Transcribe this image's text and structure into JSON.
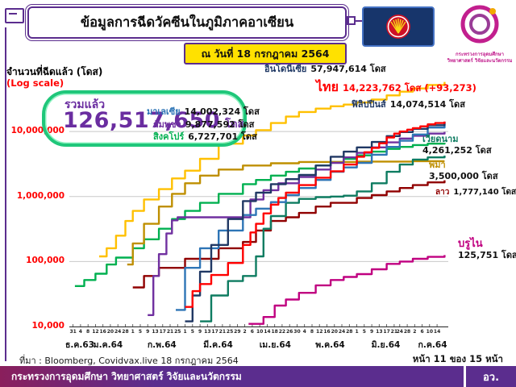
{
  "header": {
    "title": "ข้อมูลการฉีดวัคซีนในภูมิภาคอาเซียน",
    "date_badge": "ณ วันที่ 18 กรกฎาคม 2564"
  },
  "axis": {
    "y_label": "จำนวนที่ฉีดแล้ว (โดส)",
    "log_note": "(Log scale)"
  },
  "total": {
    "label": "รวมแล้ว",
    "value": "126,517,650",
    "unit": "โดส"
  },
  "logos": {
    "ministry_line1": "กระทรวงการอุดมศึกษา",
    "ministry_line2": "วิทยาศาสตร์ วิจัยและนวัตกรรม"
  },
  "annotations": [
    {
      "country": "อินโดนีเซีย",
      "value": "57,947,614 โดส",
      "color": "#1F3864"
    },
    {
      "country": "ไทย",
      "value": "14,223,762 โดส (+93,273)",
      "color": "#FF0000"
    },
    {
      "country": "ฟิลิปปินส์",
      "value": "14,074,514 โดส",
      "color": "#203864"
    },
    {
      "country": "มาเลเซีย",
      "value": "14,002,324 โดส",
      "color": "#2E75B6"
    },
    {
      "country": "กัมพูชา",
      "value": "9,877,592 โดส",
      "color": "#7030A0"
    },
    {
      "country": "สิงคโปร์",
      "value": "6,727,701 โดส",
      "color": "#00B050"
    },
    {
      "country": "เวียดนาม",
      "value": "4,261,252 โดส",
      "color": "#0E7C61"
    },
    {
      "country": "พม่า",
      "value": "3,500,000 โดส",
      "color": "#BF8F00"
    },
    {
      "country": "ลาว",
      "value": "1,777,140 โดส",
      "color": "#900000"
    },
    {
      "country": "บรูไน",
      "value": "125,751 โดส",
      "color": "#C00080"
    }
  ],
  "chart_data": {
    "type": "line",
    "y_scale": "log",
    "y_range": [
      10000,
      70000000
    ],
    "y_ticks": [
      {
        "value": 10000000,
        "label": "10,000,000"
      },
      {
        "value": 1000000,
        "label": "1,000,000"
      },
      {
        "value": 100000,
        "label": "100,000"
      },
      {
        "value": 10000,
        "label": "10,000"
      }
    ],
    "x_range": [
      0,
      203
    ],
    "x_ticks": [
      [
        2,
        "31"
      ],
      [
        6,
        "4"
      ],
      [
        10,
        "8"
      ],
      [
        14,
        "12"
      ],
      [
        18,
        "16"
      ],
      [
        22,
        "20"
      ],
      [
        26,
        "24"
      ],
      [
        30,
        "28"
      ],
      [
        34,
        "1"
      ],
      [
        38,
        "5"
      ],
      [
        42,
        "9"
      ],
      [
        46,
        "13"
      ],
      [
        50,
        "17"
      ],
      [
        54,
        "21"
      ],
      [
        58,
        "25"
      ],
      [
        62,
        "1"
      ],
      [
        66,
        "5"
      ],
      [
        70,
        "9"
      ],
      [
        74,
        "13"
      ],
      [
        78,
        "17"
      ],
      [
        82,
        "21"
      ],
      [
        86,
        "25"
      ],
      [
        90,
        "29"
      ],
      [
        94,
        "2"
      ],
      [
        98,
        "6"
      ],
      [
        102,
        "10"
      ],
      [
        106,
        "14"
      ],
      [
        110,
        "18"
      ],
      [
        114,
        "22"
      ],
      [
        118,
        "26"
      ],
      [
        122,
        "30"
      ],
      [
        126,
        "4"
      ],
      [
        130,
        "8"
      ],
      [
        134,
        "12"
      ],
      [
        138,
        "16"
      ],
      [
        142,
        "20"
      ],
      [
        146,
        "24"
      ],
      [
        150,
        "28"
      ],
      [
        154,
        "1"
      ],
      [
        158,
        "5"
      ],
      [
        162,
        "9"
      ],
      [
        166,
        "13"
      ],
      [
        170,
        "17"
      ],
      [
        174,
        "21"
      ],
      [
        177,
        "24"
      ],
      [
        181,
        "28"
      ],
      [
        185,
        "2"
      ],
      [
        189,
        "6"
      ],
      [
        193,
        "10"
      ],
      [
        197,
        "14"
      ]
    ],
    "x_months": [
      [
        3,
        "ธ.ค.63"
      ],
      [
        18,
        "ม.ค.64"
      ],
      [
        47,
        "ก.พ.64"
      ],
      [
        77,
        "มี.ค.64"
      ],
      [
        107,
        "เม.ย.64"
      ],
      [
        137,
        "พ.ค.64"
      ],
      [
        167,
        "มิ.ย.64"
      ],
      [
        192,
        "ก.ค.64"
      ]
    ],
    "series": [
      {
        "key": "singapore",
        "name": "สิงคโปร์",
        "color": "#00B050",
        "total": 6727701,
        "points": [
          [
            3,
            42000
          ],
          [
            8,
            52000
          ],
          [
            14,
            65000
          ],
          [
            20,
            90000
          ],
          [
            25,
            115000
          ],
          [
            34,
            160000
          ],
          [
            40,
            220000
          ],
          [
            48,
            320000
          ],
          [
            55,
            450000
          ],
          [
            62,
            600000
          ],
          [
            70,
            800000
          ],
          [
            80,
            1100000
          ],
          [
            93,
            1550000
          ],
          [
            100,
            1800000
          ],
          [
            108,
            2100000
          ],
          [
            116,
            2400000
          ],
          [
            123,
            2700000
          ],
          [
            132,
            3000000
          ],
          [
            140,
            3400000
          ],
          [
            147,
            3800000
          ],
          [
            154,
            4300000
          ],
          [
            162,
            4900000
          ],
          [
            170,
            5400000
          ],
          [
            177,
            5800000
          ],
          [
            184,
            6200000
          ],
          [
            192,
            6500000
          ],
          [
            201,
            6727701
          ]
        ]
      },
      {
        "key": "myanmar",
        "name": "พม่า",
        "color": "#BF8F00",
        "total": 3500000,
        "points": [
          [
            31,
            90000
          ],
          [
            34,
            190000
          ],
          [
            40,
            380000
          ],
          [
            48,
            700000
          ],
          [
            55,
            1100000
          ],
          [
            62,
            1600000
          ],
          [
            70,
            2100000
          ],
          [
            80,
            2600000
          ],
          [
            93,
            3000000
          ],
          [
            108,
            3250000
          ],
          [
            123,
            3400000
          ],
          [
            154,
            3450000
          ],
          [
            184,
            3500000
          ],
          [
            201,
            3500000
          ]
        ]
      },
      {
        "key": "laos",
        "name": "ลาว",
        "color": "#900000",
        "total": 1777140,
        "points": [
          [
            34,
            40000
          ],
          [
            40,
            60000
          ],
          [
            48,
            80000
          ],
          [
            62,
            110000
          ],
          [
            80,
            160000
          ],
          [
            93,
            200000
          ],
          [
            100,
            300000
          ],
          [
            108,
            420000
          ],
          [
            116,
            480000
          ],
          [
            123,
            560000
          ],
          [
            132,
            700000
          ],
          [
            140,
            800000
          ],
          [
            154,
            950000
          ],
          [
            162,
            1050000
          ],
          [
            170,
            1200000
          ],
          [
            177,
            1350000
          ],
          [
            184,
            1500000
          ],
          [
            192,
            1650000
          ],
          [
            201,
            1777140
          ]
        ]
      },
      {
        "key": "cambodia",
        "name": "กัมพูชา",
        "color": "#7030A0",
        "total": 9877592,
        "points": [
          [
            42,
            15000
          ],
          [
            45,
            60000
          ],
          [
            48,
            130000
          ],
          [
            52,
            270000
          ],
          [
            55,
            430000
          ],
          [
            58,
            480000
          ],
          [
            93,
            480000
          ],
          [
            97,
            900000
          ],
          [
            104,
            1250000
          ],
          [
            112,
            1600000
          ],
          [
            123,
            2000000
          ],
          [
            132,
            2600000
          ],
          [
            140,
            3300000
          ],
          [
            147,
            4000000
          ],
          [
            154,
            4700000
          ],
          [
            162,
            5700000
          ],
          [
            170,
            6800000
          ],
          [
            177,
            7800000
          ],
          [
            184,
            8600000
          ],
          [
            192,
            9300000
          ],
          [
            201,
            9877592
          ]
        ]
      },
      {
        "key": "vietnam",
        "name": "เวียดนาม",
        "color": "#0E7C61",
        "total": 4261252,
        "points": [
          [
            70,
            12000
          ],
          [
            76,
            30000
          ],
          [
            85,
            50000
          ],
          [
            93,
            60000
          ],
          [
            100,
            120000
          ],
          [
            104,
            320000
          ],
          [
            108,
            500000
          ],
          [
            116,
            800000
          ],
          [
            123,
            920000
          ],
          [
            132,
            980000
          ],
          [
            140,
            1000000
          ],
          [
            147,
            1030000
          ],
          [
            154,
            1200000
          ],
          [
            162,
            1600000
          ],
          [
            170,
            2400000
          ],
          [
            177,
            3100000
          ],
          [
            184,
            3700000
          ],
          [
            192,
            4000000
          ],
          [
            201,
            4261252
          ]
        ]
      },
      {
        "key": "brunei",
        "name": "บรูไน",
        "color": "#C00080",
        "total": 125751,
        "points": [
          [
            96,
            11000
          ],
          [
            104,
            14000
          ],
          [
            110,
            21000
          ],
          [
            116,
            26000
          ],
          [
            123,
            33000
          ],
          [
            132,
            43000
          ],
          [
            140,
            52000
          ],
          [
            147,
            58000
          ],
          [
            154,
            64000
          ],
          [
            162,
            76000
          ],
          [
            170,
            92000
          ],
          [
            177,
            100000
          ],
          [
            184,
            110000
          ],
          [
            192,
            118000
          ],
          [
            201,
            125751
          ]
        ]
      },
      {
        "key": "malaysia",
        "name": "มาเลเซีย",
        "color": "#2E75B6",
        "total": 14002324,
        "points": [
          [
            57,
            18000
          ],
          [
            62,
            80000
          ],
          [
            70,
            160000
          ],
          [
            80,
            300000
          ],
          [
            93,
            520000
          ],
          [
            100,
            650000
          ],
          [
            108,
            820000
          ],
          [
            116,
            1050000
          ],
          [
            123,
            1350000
          ],
          [
            132,
            1800000
          ],
          [
            140,
            2400000
          ],
          [
            147,
            2800000
          ],
          [
            154,
            3300000
          ],
          [
            162,
            4400000
          ],
          [
            170,
            5800000
          ],
          [
            177,
            7200000
          ],
          [
            184,
            9000000
          ],
          [
            192,
            11500000
          ],
          [
            201,
            14002324
          ]
        ]
      },
      {
        "key": "philippines",
        "name": "ฟิลิปปินส์",
        "color": "#203864",
        "total": 14074514,
        "points": [
          [
            62,
            12000
          ],
          [
            66,
            30000
          ],
          [
            70,
            70000
          ],
          [
            76,
            180000
          ],
          [
            85,
            450000
          ],
          [
            93,
            850000
          ],
          [
            100,
            1150000
          ],
          [
            108,
            1550000
          ],
          [
            116,
            1850000
          ],
          [
            123,
            2150000
          ],
          [
            132,
            3000000
          ],
          [
            140,
            4100000
          ],
          [
            147,
            4900000
          ],
          [
            154,
            5700000
          ],
          [
            162,
            6900000
          ],
          [
            170,
            8500000
          ],
          [
            177,
            9800000
          ],
          [
            184,
            11000000
          ],
          [
            192,
            12500000
          ],
          [
            201,
            14074514
          ]
        ]
      },
      {
        "key": "indonesia",
        "name": "อินโดนีเซีย",
        "color": "#FFC000",
        "total": 57947614,
        "points": [
          [
            16,
            120000
          ],
          [
            20,
            160000
          ],
          [
            25,
            250000
          ],
          [
            30,
            420000
          ],
          [
            34,
            600000
          ],
          [
            40,
            900000
          ],
          [
            48,
            1300000
          ],
          [
            55,
            1900000
          ],
          [
            62,
            2500000
          ],
          [
            70,
            3800000
          ],
          [
            80,
            6500000
          ],
          [
            93,
            8700000
          ],
          [
            100,
            10500000
          ],
          [
            108,
            13500000
          ],
          [
            116,
            17000000
          ],
          [
            123,
            20000000
          ],
          [
            132,
            22500000
          ],
          [
            140,
            24500000
          ],
          [
            147,
            26000000
          ],
          [
            154,
            28000000
          ],
          [
            162,
            31000000
          ],
          [
            170,
            36000000
          ],
          [
            177,
            41000000
          ],
          [
            184,
            46000000
          ],
          [
            192,
            52000000
          ],
          [
            201,
            57947614
          ]
        ]
      },
      {
        "key": "thailand",
        "name": "ไทย",
        "color": "#FF0000",
        "total": 14223762,
        "points": [
          [
            62,
            20000
          ],
          [
            66,
            35000
          ],
          [
            70,
            45000
          ],
          [
            76,
            62000
          ],
          [
            85,
            95000
          ],
          [
            93,
            180000
          ],
          [
            97,
            280000
          ],
          [
            100,
            380000
          ],
          [
            104,
            550000
          ],
          [
            108,
            750000
          ],
          [
            112,
            950000
          ],
          [
            116,
            1150000
          ],
          [
            123,
            1500000
          ],
          [
            132,
            1950000
          ],
          [
            140,
            2450000
          ],
          [
            147,
            3100000
          ],
          [
            154,
            4100000
          ],
          [
            158,
            4800000
          ],
          [
            162,
            5600000
          ],
          [
            166,
            6600000
          ],
          [
            170,
            8100000
          ],
          [
            174,
            9300000
          ],
          [
            177,
            10000000
          ],
          [
            181,
            10700000
          ],
          [
            184,
            11300000
          ],
          [
            188,
            12000000
          ],
          [
            192,
            12900000
          ],
          [
            196,
            13500000
          ],
          [
            201,
            14223762
          ]
        ]
      }
    ]
  },
  "source": "ที่มา : Bloomberg, Covidvax.live 18 กรกฎาคม 2564",
  "page_indicator": "หน้า 11 ของ 15 หน้า",
  "footer": {
    "ministry": "กระทรวงการอุดมศึกษา วิทยาศาสตร์ วิจัยและนวัตกรรม",
    "abbr": "อว."
  }
}
